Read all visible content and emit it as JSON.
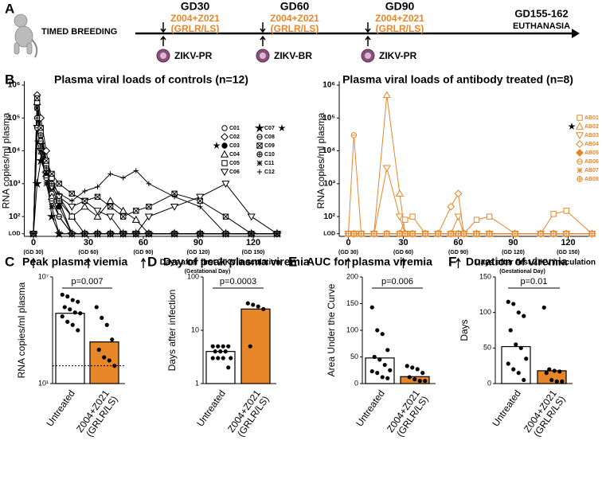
{
  "timeline": {
    "label": "A",
    "start": "TIMED BREEDING",
    "events": [
      {
        "day": "GD30",
        "treatment": "Z004+Z021",
        "treatment_detail": "(GRLR/LS)",
        "infection": "ZIKV-PR"
      },
      {
        "day": "GD60",
        "treatment": "Z004+Z021",
        "treatment_detail": "(GRLR/LS)",
        "infection": "ZIKV-BR"
      },
      {
        "day": "GD90",
        "treatment": "Z004+Z021",
        "treatment_detail": "(GRLR/LS)",
        "infection": "ZIKV-PR"
      }
    ],
    "end": "GD155-162",
    "end_detail": "EUTHANASIA"
  },
  "chart_data": [
    {
      "type": "line",
      "panel": "B",
      "title": "Plasma viral loads of controls (n=12)",
      "ylabel": "RNA copies/ml plasma",
      "xlabel": "Days after first ZIKV inoculation",
      "xlabel_sub": "(Gestational Day)",
      "log_y": true,
      "xlim": [
        -5,
        135
      ],
      "ylim": [
        25,
        1000000
      ],
      "xticks": [
        0,
        30,
        60,
        90,
        120
      ],
      "x_sublabels": [
        "(GD 30)",
        "(GD 60)",
        "(GD 90)",
        "(GD 120)",
        "(GD 150)"
      ],
      "inoculation_days": [
        0,
        30,
        60
      ],
      "yticks": [
        {
          "value": 30,
          "label": "LOD"
        },
        {
          "value": 100,
          "label": "10²"
        },
        {
          "value": 1000,
          "label": "10³"
        },
        {
          "value": 10000,
          "label": "10⁴"
        },
        {
          "value": 100000,
          "label": "10⁵"
        },
        {
          "value": 1000000,
          "label": "10⁶"
        }
      ],
      "x": [
        0,
        2,
        4,
        7,
        10,
        14,
        21,
        28,
        35,
        42,
        49,
        56,
        63,
        77,
        91,
        105,
        119,
        133
      ],
      "series": [
        {
          "name": "C01",
          "color": "#000000",
          "marker": "circle",
          "values": [
            30,
            200000,
            30000,
            3000,
            500,
            100,
            30,
            30,
            30,
            30,
            30,
            30,
            30,
            30,
            30,
            30,
            30,
            30
          ]
        },
        {
          "name": "C02",
          "color": "#000000",
          "marker": "diamond",
          "values": [
            30,
            500000,
            100000,
            10000,
            1000,
            300,
            30,
            30,
            30,
            30,
            30,
            30,
            30,
            30,
            30,
            30,
            30,
            30
          ]
        },
        {
          "name": "C03",
          "color": "#000000",
          "marker": "circle-filled",
          "starred": true,
          "values": [
            30,
            100000,
            50000,
            5000,
            800,
            200,
            30,
            30,
            30,
            30,
            30,
            30,
            30,
            30,
            30,
            30,
            30,
            30
          ]
        },
        {
          "name": "C04",
          "color": "#000000",
          "marker": "triangle",
          "values": [
            30,
            300000,
            20000,
            2000,
            400,
            300,
            100,
            200,
            100,
            300,
            150,
            80,
            30,
            30,
            30,
            30,
            30,
            30
          ]
        },
        {
          "name": "C05",
          "color": "#000000",
          "marker": "square",
          "values": [
            30,
            300000,
            40000,
            4000,
            1500,
            400,
            100,
            30,
            30,
            30,
            30,
            30,
            30,
            30,
            30,
            30,
            30,
            30
          ]
        },
        {
          "name": "C06",
          "color": "#000000",
          "marker": "triangle-down",
          "values": [
            30,
            50000,
            10000,
            2000,
            800,
            400,
            200,
            300,
            150,
            100,
            30,
            30,
            100,
            200,
            400,
            1000,
            100,
            30
          ]
        },
        {
          "name": "C07",
          "color": "#000000",
          "marker": "star-filled",
          "starred": true,
          "values": [
            30,
            1000,
            5000,
            2000,
            100,
            30,
            30,
            30,
            30,
            30,
            30,
            30,
            30,
            30,
            30,
            30,
            30,
            30
          ]
        },
        {
          "name": "C08",
          "color": "#000000",
          "marker": "circle-bar",
          "values": [
            30,
            50000,
            20000,
            1500,
            300,
            100,
            30,
            30,
            30,
            30,
            30,
            30,
            30,
            30,
            30,
            30,
            30,
            30
          ]
        },
        {
          "name": "C09",
          "color": "#000000",
          "marker": "square-x",
          "values": [
            30,
            400000,
            50000,
            5000,
            2000,
            1000,
            500,
            300,
            400,
            200,
            100,
            150,
            200,
            500,
            300,
            100,
            30,
            30
          ]
        },
        {
          "name": "C10",
          "color": "#000000",
          "marker": "circle-plus",
          "values": [
            30,
            100000,
            30000,
            3000,
            1000,
            300,
            30,
            30,
            30,
            30,
            30,
            30,
            30,
            30,
            30,
            30,
            30,
            30
          ]
        },
        {
          "name": "C11",
          "color": "#000000",
          "marker": "asterisk",
          "values": [
            30,
            200000,
            10000,
            1000,
            200,
            30,
            30,
            30,
            30,
            30,
            30,
            30,
            30,
            30,
            30,
            30,
            30,
            30
          ]
        },
        {
          "name": "C12",
          "color": "#000000",
          "marker": "plus",
          "values": [
            30,
            20000,
            8000,
            3000,
            1000,
            500,
            300,
            600,
            800,
            2000,
            1500,
            2500,
            1000,
            400,
            200,
            30,
            30,
            30
          ]
        }
      ]
    },
    {
      "type": "line",
      "title": "Plasma viral loads of antibody treated (n=8)",
      "ylabel": "RNA copies/ml plasma",
      "xlabel": "Days after first ZIKV inoculation",
      "xlabel_sub": "(Gestational Day)",
      "log_y": true,
      "xlim": [
        -5,
        135
      ],
      "ylim": [
        25,
        1000000
      ],
      "xticks": [
        0,
        30,
        60,
        90,
        120
      ],
      "x_sublabels": [
        "(GD 30)",
        "(GD 60)",
        "(GD 90)",
        "(GD 120)",
        "(GD 150)"
      ],
      "inoculation_days": [
        0,
        30,
        60
      ],
      "yticks": [
        {
          "value": 30,
          "label": "LOD"
        },
        {
          "value": 100,
          "label": "10²"
        },
        {
          "value": 1000,
          "label": "10³"
        },
        {
          "value": 10000,
          "label": "10⁴"
        },
        {
          "value": 100000,
          "label": "10⁵"
        },
        {
          "value": 1000000,
          "label": "10⁶"
        }
      ],
      "x": [
        0,
        3,
        7,
        14,
        21,
        28,
        31,
        35,
        42,
        49,
        56,
        60,
        63,
        70,
        77,
        91,
        105,
        112,
        119,
        133
      ],
      "series": [
        {
          "name": "AB01",
          "color": "#e8862a",
          "marker": "square",
          "values": [
            30,
            30,
            30,
            30,
            30,
            30,
            80,
            100,
            30,
            30,
            30,
            30,
            30,
            80,
            100,
            30,
            30,
            120,
            150,
            30
          ]
        },
        {
          "name": "AB02",
          "color": "#e8862a",
          "marker": "triangle",
          "starred": true,
          "values": [
            30,
            30,
            30,
            30,
            500000,
            500,
            30,
            30,
            30,
            30,
            30,
            30,
            30,
            30,
            30,
            30,
            30,
            30,
            30,
            30
          ]
        },
        {
          "name": "AB03",
          "color": "#e8862a",
          "marker": "triangle-down",
          "values": [
            30,
            30,
            30,
            30,
            3000,
            100,
            30,
            30,
            30,
            30,
            30,
            100,
            30,
            30,
            30,
            30,
            30,
            30,
            30,
            30
          ]
        },
        {
          "name": "AB04",
          "color": "#e8862a",
          "marker": "diamond",
          "values": [
            30,
            30,
            30,
            30,
            30,
            30,
            30,
            30,
            30,
            30,
            200,
            500,
            30,
            30,
            30,
            30,
            30,
            30,
            30,
            30
          ]
        },
        {
          "name": "AB05",
          "color": "#e8862a",
          "marker": "diamond-filled",
          "values": [
            30,
            30,
            30,
            30,
            30,
            30,
            30,
            30,
            30,
            30,
            30,
            30,
            30,
            30,
            30,
            30,
            30,
            30,
            30,
            30
          ]
        },
        {
          "name": "AB06",
          "color": "#e8862a",
          "marker": "circle-bar",
          "values": [
            30,
            30000,
            30,
            30,
            30,
            30,
            30,
            30,
            30,
            30,
            30,
            30,
            30,
            30,
            30,
            30,
            30,
            30,
            30,
            30
          ]
        },
        {
          "name": "AB07",
          "color": "#e8862a",
          "marker": "asterisk",
          "values": [
            30,
            30,
            30,
            30,
            30,
            30,
            30,
            30,
            30,
            30,
            30,
            30,
            30,
            30,
            30,
            30,
            30,
            30,
            30,
            30
          ]
        },
        {
          "name": "AB08",
          "color": "#e8862a",
          "marker": "circle-plus",
          "values": [
            30,
            30,
            30,
            30,
            30,
            30,
            30,
            30,
            30,
            30,
            30,
            30,
            30,
            30,
            30,
            30,
            30,
            30,
            30,
            30
          ]
        }
      ]
    },
    {
      "type": "bar",
      "panel": "C",
      "title": "Peak plasma viemia",
      "ylabel": "RNA copies/ml plasma",
      "log_y": true,
      "ylim": [
        10,
        10000000
      ],
      "yticks": [
        {
          "value": 10,
          "label": "10¹"
        },
        {
          "value": 10000000,
          "label": "10⁷"
        }
      ],
      "reference_line": 100,
      "categories": [
        "Untreated",
        "Z004+Z021\n(GRLR/LS)"
      ],
      "colors": [
        "#ffffff",
        "#e8862a"
      ],
      "values": [
        90000,
        2200
      ],
      "points": [
        [
          1000000,
          800000,
          500000,
          400000,
          200000,
          150000,
          100000,
          90000,
          60000,
          30000,
          20000,
          10000
        ],
        [
          200000,
          50000,
          20000,
          3000,
          800,
          300,
          200,
          100
        ]
      ],
      "pvalue": "p=0.007"
    },
    {
      "type": "bar",
      "panel": "D",
      "title": "Day of peak plasma viremia",
      "ylabel": "Days after infection",
      "log_y": true,
      "ylim": [
        1,
        100
      ],
      "yticks": [
        1,
        10,
        100
      ],
      "categories": [
        "Untreated",
        "Z004+Z021\n(GRLR/LS)"
      ],
      "colors": [
        "#ffffff",
        "#e8862a"
      ],
      "values": [
        4,
        25
      ],
      "points": [
        [
          5,
          5,
          5,
          5,
          4,
          4,
          4,
          3,
          3,
          3,
          3,
          2
        ],
        [
          32,
          30,
          28,
          25,
          5
        ]
      ],
      "pvalue": "p=0.0003"
    },
    {
      "type": "bar",
      "panel": "E",
      "title": "AUC for plasma viremia",
      "ylabel": "Area Under the Curve",
      "log_y": false,
      "ylim": [
        0,
        200
      ],
      "yticks": [
        0,
        50,
        100,
        150,
        200
      ],
      "categories": [
        "Untreated",
        "Z004+Z021\n(GRLR/LS)"
      ],
      "colors": [
        "#ffffff",
        "#e8862a"
      ],
      "values": [
        48,
        13
      ],
      "points": [
        [
          143,
          100,
          93,
          63,
          50,
          45,
          35,
          25,
          23,
          20,
          12,
          10
        ],
        [
          33,
          30,
          27,
          20,
          12,
          8,
          5,
          5
        ]
      ],
      "pvalue": "p=0.006"
    },
    {
      "type": "bar",
      "panel": "F",
      "title": "Duration of viremia",
      "ylabel": "Days",
      "log_y": false,
      "ylim": [
        0,
        150
      ],
      "yticks": [
        0,
        50,
        100,
        150
      ],
      "categories": [
        "Untreated",
        "Z004+Z021\n(GRLR/LS)"
      ],
      "colors": [
        "#ffffff",
        "#e8862a"
      ],
      "values": [
        52,
        18
      ],
      "points": [
        [
          115,
          112,
          100,
          95,
          75,
          55,
          50,
          35,
          28,
          20,
          15,
          5
        ],
        [
          107,
          20,
          18,
          17,
          15,
          5,
          3,
          3
        ]
      ],
      "pvalue": "p=0.01"
    }
  ]
}
